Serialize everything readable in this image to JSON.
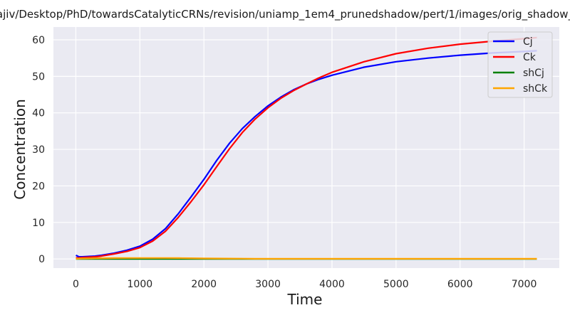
{
  "chart_data": {
    "type": "line",
    "title": "ajiv/Desktop/PhD/towardsCatalyticCRNs/revision/uniamp_1em4_prunedshadow/pert/1/images/orig_shadow_",
    "xlabel": "Time",
    "ylabel": "Concentration",
    "xlim": [
      -350,
      7550
    ],
    "ylim": [
      -2.5,
      63.5
    ],
    "xticks": [
      0,
      1000,
      2000,
      3000,
      4000,
      5000,
      6000,
      7000
    ],
    "yticks": [
      0,
      10,
      20,
      30,
      40,
      50,
      60
    ],
    "grid": true,
    "legend_position": "top-right",
    "x": [
      0,
      50,
      100,
      200,
      300,
      400,
      500,
      600,
      800,
      1000,
      1200,
      1400,
      1600,
      1800,
      2000,
      2200,
      2400,
      2600,
      2800,
      3000,
      3200,
      3400,
      3600,
      3800,
      4000,
      4500,
      5000,
      5500,
      6000,
      6500,
      7000,
      7200
    ],
    "series": [
      {
        "name": "Cj",
        "color": "#0000ff",
        "values": [
          1.0,
          0.6,
          0.6,
          0.7,
          0.8,
          1.0,
          1.3,
          1.6,
          2.4,
          3.5,
          5.4,
          8.3,
          12.4,
          17.0,
          21.8,
          27.0,
          31.7,
          35.7,
          39.0,
          41.9,
          44.3,
          46.3,
          47.9,
          49.2,
          50.3,
          52.5,
          54.0,
          55.0,
          55.8,
          56.4,
          56.8,
          57.0
        ]
      },
      {
        "name": "Ck",
        "color": "#ff0000",
        "values": [
          0.3,
          0.3,
          0.4,
          0.5,
          0.6,
          0.8,
          1.1,
          1.4,
          2.1,
          3.1,
          4.9,
          7.6,
          11.4,
          15.7,
          20.3,
          25.3,
          30.2,
          34.6,
          38.3,
          41.4,
          44.0,
          46.1,
          47.9,
          49.6,
          51.1,
          54.0,
          56.2,
          57.7,
          58.8,
          59.6,
          60.3,
          60.6
        ]
      },
      {
        "name": "shCj",
        "color": "#008000",
        "values": [
          0,
          0,
          0,
          0,
          0,
          0,
          0,
          0,
          0,
          0,
          0,
          0,
          0,
          0,
          0,
          0,
          0,
          0,
          0,
          0,
          0,
          0,
          0,
          0,
          0,
          0,
          0,
          0,
          0,
          0,
          0,
          0
        ]
      },
      {
        "name": "shCk",
        "color": "#ffa500",
        "values": [
          0.05,
          0.1,
          0.12,
          0.15,
          0.18,
          0.2,
          0.22,
          0.25,
          0.26,
          0.27,
          0.27,
          0.26,
          0.24,
          0.2,
          0.15,
          0.12,
          0.1,
          0.08,
          0.06,
          0.05,
          0.05,
          0.05,
          0.05,
          0.05,
          0.05,
          0.05,
          0.05,
          0.05,
          0.05,
          0.05,
          0.05,
          0.05
        ]
      }
    ]
  }
}
